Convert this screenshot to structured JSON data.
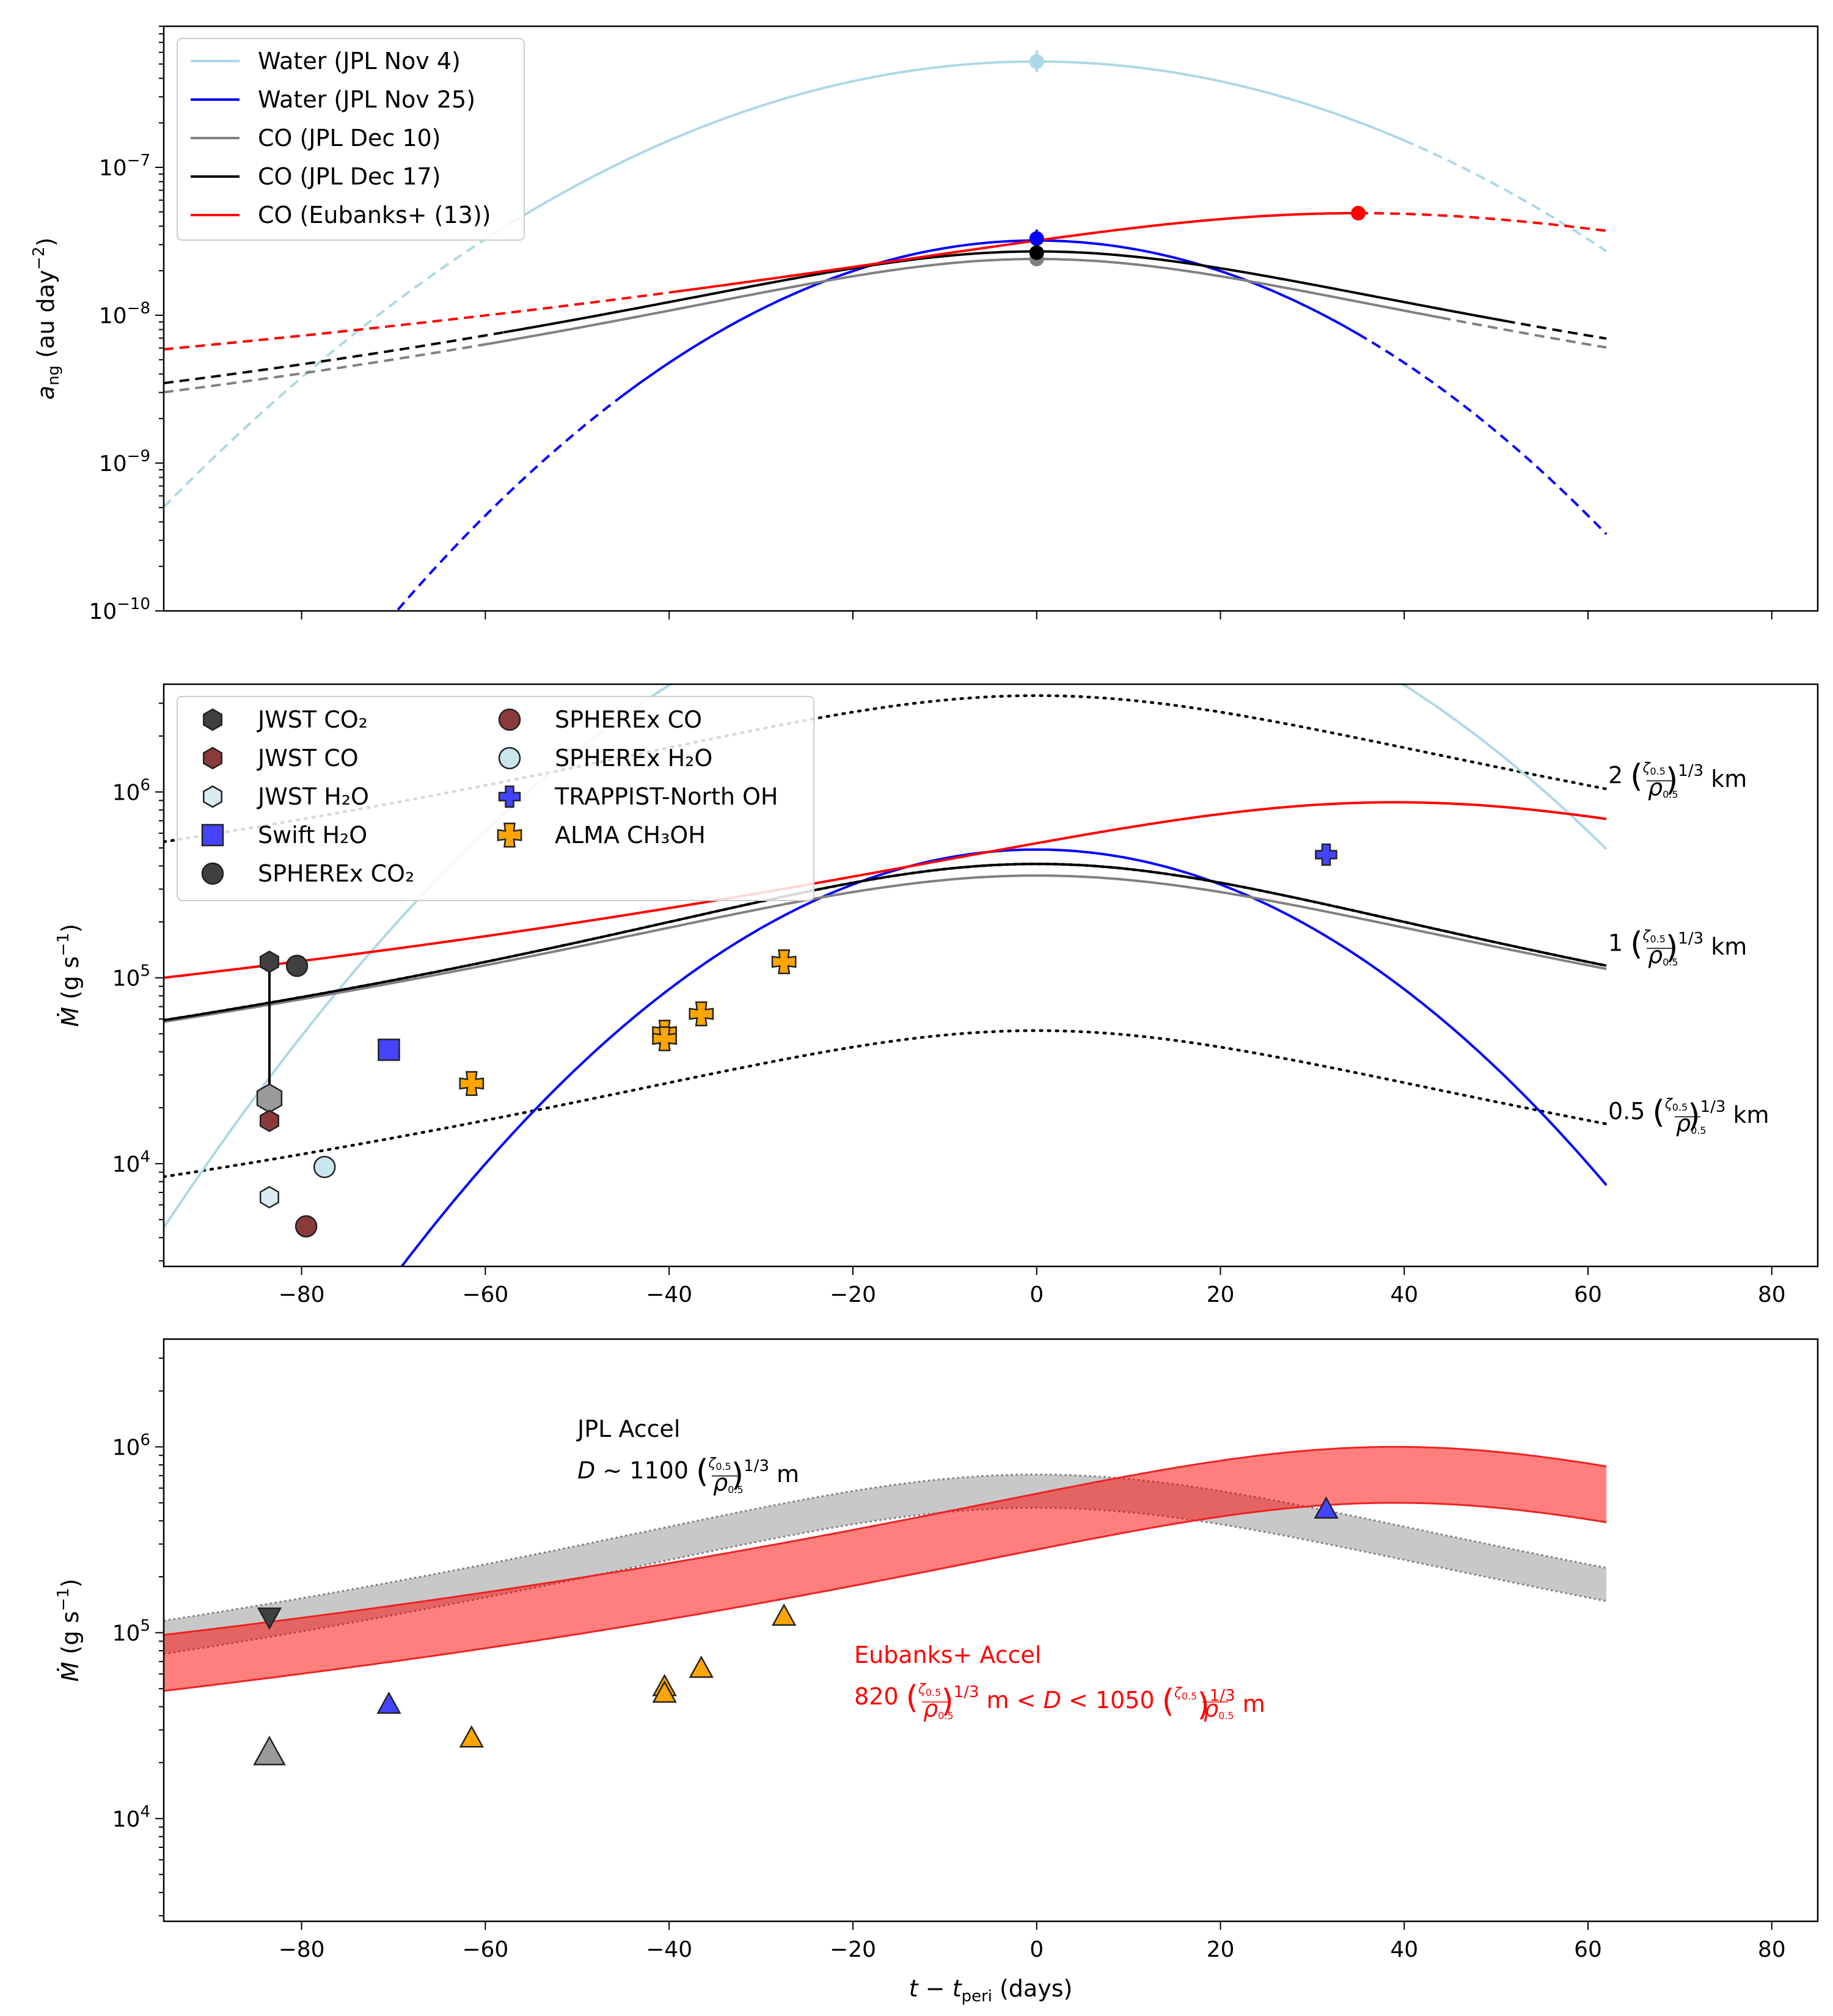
{
  "chart_data": [
    {
      "type": "line",
      "panel": "top",
      "ylabel": "a_ng (au day^-2)",
      "xlabel": "",
      "yscale": "log",
      "ylim": [
        1e-10,
        9e-07
      ],
      "xlim": [
        -95,
        85
      ],
      "yticks": [
        {
          "value": 1e-07,
          "label": "10^-7"
        },
        {
          "value": 1e-08,
          "label": "10^-8"
        },
        {
          "value": 1e-09,
          "label": "10^-9"
        },
        {
          "value": 1e-10,
          "label": "10^-10"
        }
      ],
      "legend_position": "top-left",
      "series": [
        {
          "name": "Water (JPL Nov 4)",
          "color": "#add8e6",
          "model": "gauss",
          "peak": 5.2e-07,
          "center": 0,
          "sigma": 25.5,
          "solid_range": [
            -60,
            40
          ],
          "marker": {
            "x": 0,
            "y": 5.2e-07,
            "err": [
              8e-08,
              1e-07
            ]
          }
        },
        {
          "name": "Water (JPL Nov 25)",
          "color": "#0000ff",
          "model": "gauss",
          "peak": 3.2e-08,
          "center": 0,
          "sigma": 20.5,
          "solid_range": [
            -45,
            35
          ],
          "marker": {
            "x": 0,
            "y": 3.3e-08,
            "err": [
              4e-09,
              5e-09
            ]
          }
        },
        {
          "name": "CO (JPL Dec 10)",
          "color": "#808080",
          "model": "cauchy",
          "peak": 2.4e-08,
          "center": 0,
          "gamma": 36.0,
          "solid_range": [
            -60,
            44
          ],
          "marker": {
            "x": 0,
            "y": 2.4e-08
          }
        },
        {
          "name": "CO (JPL Dec 17)",
          "color": "#000000",
          "model": "cauchy",
          "peak": 2.7e-08,
          "center": 0,
          "gamma": 36.5,
          "solid_range": [
            -58,
            51
          ],
          "marker": {
            "x": 0,
            "y": 2.65e-08
          }
        },
        {
          "name": "CO (Eubanks+ (13))",
          "color": "#ff0000",
          "model": "cauchy",
          "peak": 4.9e-08,
          "center": 35,
          "gamma": 48.0,
          "solid_range": [
            -40,
            35
          ],
          "marker": {
            "x": 35,
            "y": 4.9e-08
          }
        }
      ]
    },
    {
      "type": "scatter",
      "panel": "middle",
      "ylabel": "Ṁ (g s^-1)",
      "xlabel": "",
      "yscale": "log",
      "ylim": [
        2800,
        3800000.0
      ],
      "xlim": [
        -95,
        85
      ],
      "xticks": [
        -80,
        -60,
        -40,
        -20,
        0,
        20,
        40,
        60,
        80
      ],
      "yticks": [
        {
          "value": 1000000.0,
          "label": "10^6"
        },
        {
          "value": 100000.0,
          "label": "10^5"
        },
        {
          "value": 10000.0,
          "label": "10^4"
        }
      ],
      "legend_position": "top-left",
      "model_curves": [
        {
          "color": "#add8e6",
          "model": "gauss",
          "peak": 16000000.0,
          "center": 0,
          "sigma": 23.5
        },
        {
          "color": "#0000ff",
          "model": "gauss",
          "peak": 490000.0,
          "center": 0,
          "sigma": 21.5
        },
        {
          "color": "#808080",
          "model": "cauchy",
          "peak": 355000.0,
          "center": 0,
          "gamma": 42.0
        },
        {
          "color": "#000000",
          "model": "cauchy",
          "peak": 410000.0,
          "center": 0,
          "gamma": 39.0
        },
        {
          "color": "#ff0000",
          "model": "cauchy",
          "peak": 880000.0,
          "center": 39,
          "gamma": 48.0
        }
      ],
      "size_curves": [
        {
          "label_size": "2",
          "label_units": "km",
          "peak": 3300000.0,
          "gamma": 42.0,
          "label_y": 1220000.0
        },
        {
          "label_size": "1",
          "label_units": "km",
          "peak": 410000.0,
          "gamma": 39.0,
          "label_y": 153000.0
        },
        {
          "label_size": "0.5",
          "label_units": "km",
          "peak": 52000.0,
          "gamma": 42.0,
          "label_y": 19000.0
        }
      ],
      "size_factor": "(ζ0.5/ρ0.5)^1/3",
      "series": [
        {
          "name": "JWST CO₂",
          "color": "#404040",
          "marker": "hexagon",
          "points": [
            {
              "x": -83.5,
              "y": 122000.0
            }
          ]
        },
        {
          "name": "JWST CO",
          "color": "#8b3a3a",
          "marker": "hexagon",
          "points": [
            {
              "x": -83.5,
              "y": 17000.0
            }
          ]
        },
        {
          "name": "JWST H₂O",
          "color": "#d8ecf2",
          "marker": "hexagon",
          "points": [
            {
              "x": -83.5,
              "y": 6600.0
            }
          ]
        },
        {
          "name": "Swift H₂O",
          "color": "#4444ff",
          "marker": "square",
          "points": [
            {
              "x": -70.5,
              "y": 41000.0
            }
          ]
        },
        {
          "name": "SPHEREx CO₂",
          "color": "#404040",
          "marker": "circle",
          "points": [
            {
              "x": -80.5,
              "y": 116000.0
            }
          ]
        },
        {
          "name": "SPHEREx CO",
          "color": "#8b3a3a",
          "marker": "circle",
          "points": [
            {
              "x": -79.5,
              "y": 4600.0
            }
          ]
        },
        {
          "name": "SPHEREx H₂O",
          "color": "#c9e6ef",
          "marker": "circle",
          "points": [
            {
              "x": -77.5,
              "y": 9600.0
            }
          ]
        },
        {
          "name": "TRAPPIST-North OH",
          "color": "#4444ff",
          "marker": "plus",
          "points": [
            {
              "x": 31.5,
              "y": 460000.0
            }
          ]
        },
        {
          "name": "ALMA CH₃OH",
          "color": "#ffa500",
          "marker": "x",
          "points": [
            {
              "x": -61.5,
              "y": 27000.0
            },
            {
              "x": -40.5,
              "y": 51000.0
            },
            {
              "x": -40.5,
              "y": 47000.0
            },
            {
              "x": -36.5,
              "y": 64000.0
            },
            {
              "x": -27.5,
              "y": 122000.0
            }
          ]
        }
      ],
      "extra_points": [
        {
          "x": -83.5,
          "y": 22500.0,
          "color": "#9a9a9a",
          "marker": "hexagon-large"
        }
      ],
      "vline": {
        "x": -83.5,
        "y_low": 22500.0,
        "y_high": 122000.0
      }
    },
    {
      "type": "area",
      "panel": "bottom",
      "ylabel": "Ṁ (g s^-1)",
      "xlabel": "t − t_peri (days)",
      "yscale": "log",
      "ylim": [
        2800,
        3800000.0
      ],
      "xlim": [
        -95,
        85
      ],
      "xticks": [
        -80,
        -60,
        -40,
        -20,
        0,
        20,
        40,
        60,
        80
      ],
      "yticks": [
        {
          "value": 1000000.0,
          "label": "10^6"
        },
        {
          "value": 100000.0,
          "label": "10^5"
        },
        {
          "value": 10000.0,
          "label": "10^4"
        }
      ],
      "bands": [
        {
          "name": "JPL Accel",
          "color": "#b0b0b0",
          "edge": "#777777",
          "center": 0,
          "upper_peak": 710000.0,
          "lower_peak": 470000.0,
          "gamma": 42.0
        },
        {
          "name": "Eubanks+ Accel",
          "color": "#ff0000",
          "edge": "#ee2222",
          "center": 39,
          "upper_peak": 1000000.0,
          "lower_peak": 500000.0,
          "gamma": 44.0
        }
      ],
      "annotations": {
        "jpl_title": "JPL Accel",
        "jpl_size": "D ~ 1100 (ζ0.5/ρ0.5)^1/3 m",
        "eub_title": "Eubanks+ Accel",
        "eub_size": "820 (ζ0.5/ρ0.5)^1/3 m < D < 1050 (ζ0.5/ρ0.5)^1/3 m"
      },
      "points": [
        {
          "x": -83.5,
          "y": 122000.0,
          "color": "#404040",
          "marker": "triangle-down"
        },
        {
          "x": -83.5,
          "y": 22500.0,
          "color": "#9a9a9a",
          "marker": "triangle-up-large"
        },
        {
          "x": -70.5,
          "y": 41000.0,
          "color": "#4444ff",
          "marker": "triangle-up"
        },
        {
          "x": -61.5,
          "y": 27000.0,
          "color": "#ffa500",
          "marker": "triangle-up"
        },
        {
          "x": -40.5,
          "y": 51000.0,
          "color": "#ffa500",
          "marker": "triangle-up"
        },
        {
          "x": -40.5,
          "y": 47000.0,
          "color": "#ffa500",
          "marker": "triangle-up"
        },
        {
          "x": -36.5,
          "y": 64000.0,
          "color": "#ffa500",
          "marker": "triangle-up"
        },
        {
          "x": -27.5,
          "y": 122000.0,
          "color": "#ffa500",
          "marker": "triangle-up"
        },
        {
          "x": 31.5,
          "y": 460000.0,
          "color": "#4444ff",
          "marker": "triangle-up"
        }
      ]
    }
  ]
}
